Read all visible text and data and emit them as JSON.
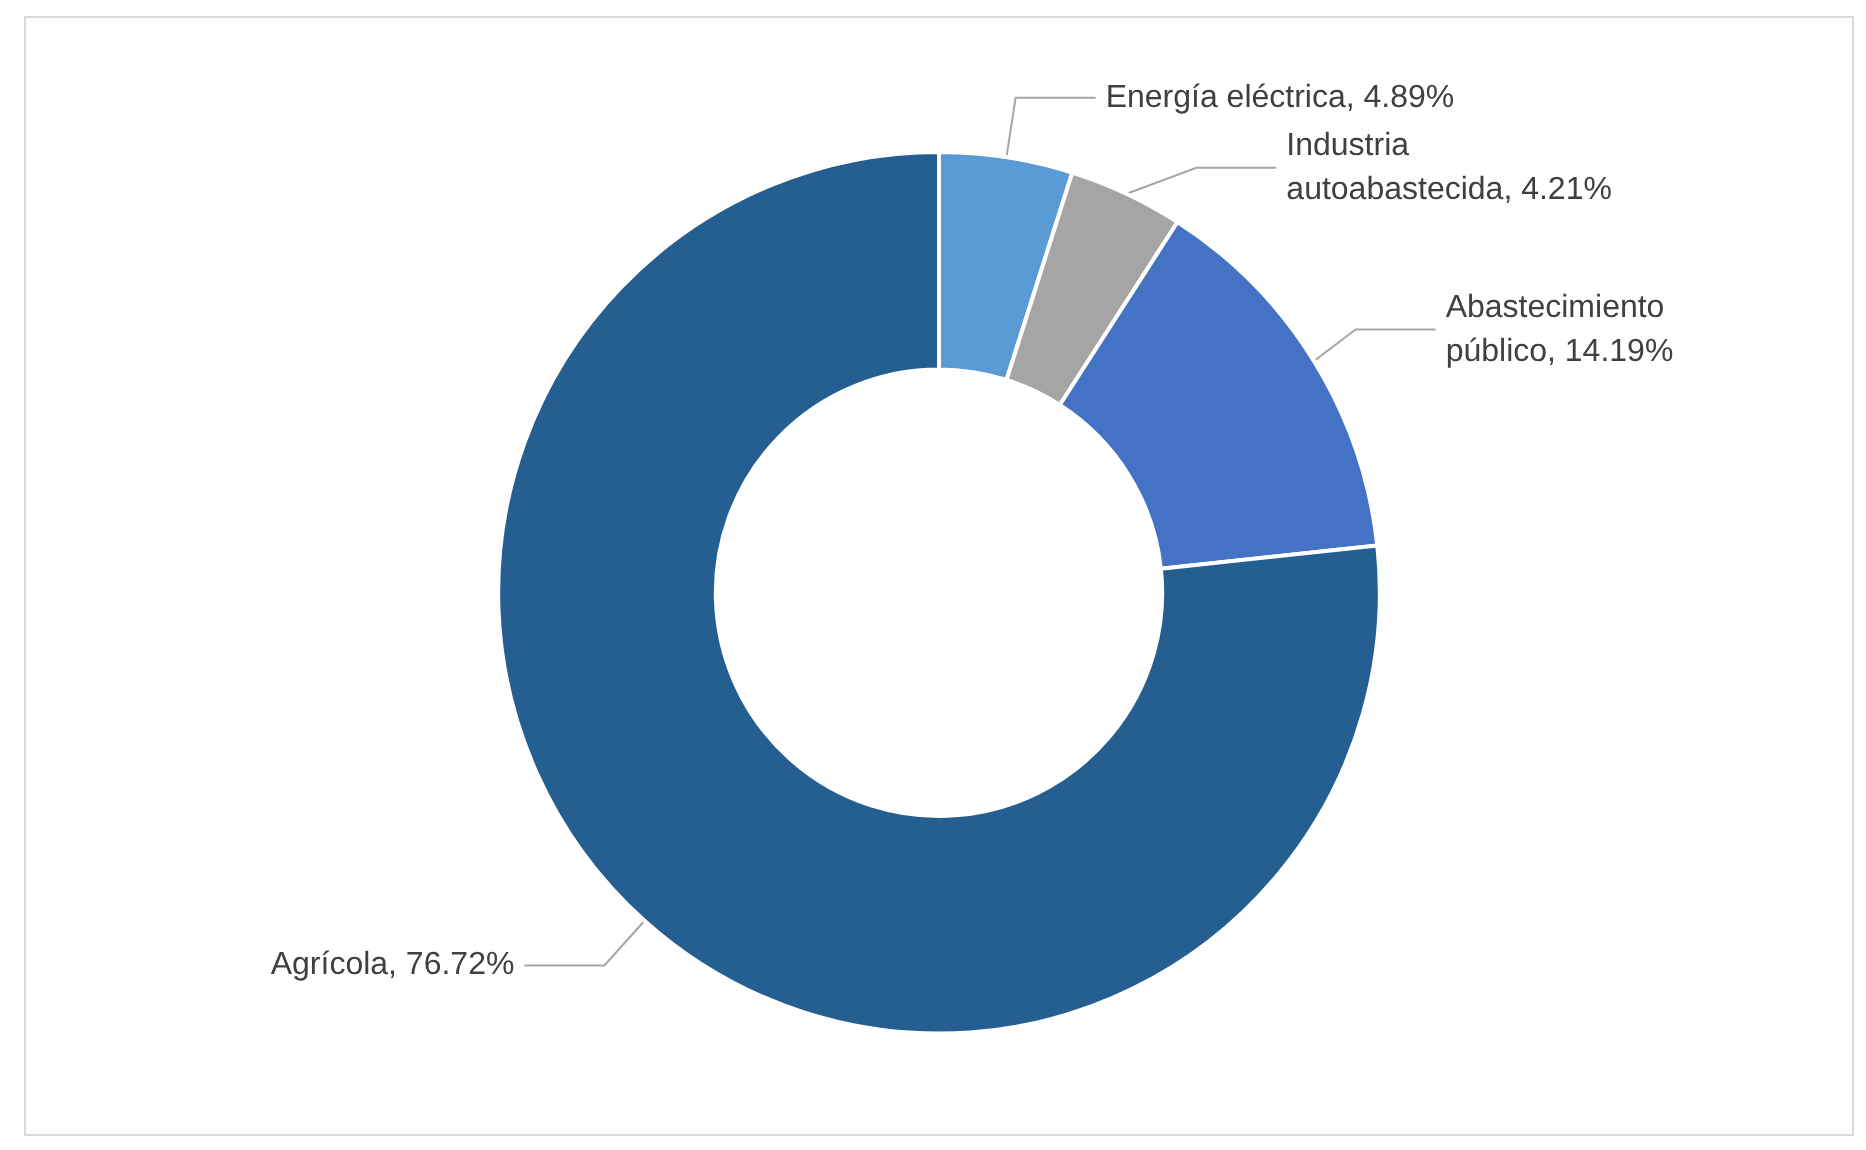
{
  "chart_data": {
    "type": "donut",
    "categories": [
      "Energía eléctrica",
      "Industria autoabastecida",
      "Abastecimiento público",
      "Agrícola"
    ],
    "value_labels": [
      "4.89%",
      "4.21%",
      "14.19%",
      "76.72%"
    ],
    "values": [
      4.89,
      4.21,
      14.19,
      76.72
    ],
    "colors": [
      "#5b9bd5",
      "#a5a5a5",
      "#4472c4",
      "#255e91"
    ],
    "legend": false
  }
}
